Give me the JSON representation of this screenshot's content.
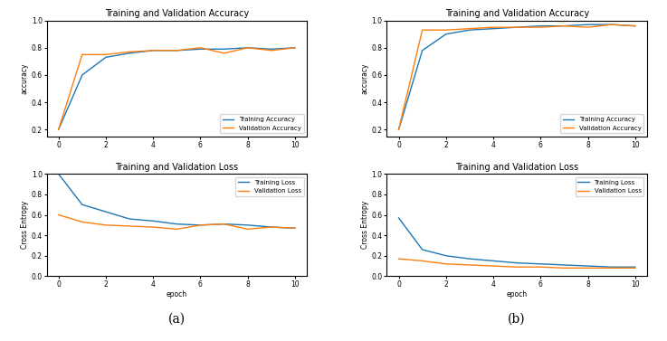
{
  "chart_data": [
    {
      "type": "line",
      "title": "Training and Validation Accuracy",
      "ylabel": "accuracy",
      "x": [
        0,
        1,
        2,
        3,
        4,
        5,
        6,
        7,
        8,
        9,
        10
      ],
      "series": [
        {
          "name": "Training Accuracy",
          "color": "#1f77b4",
          "values": [
            0.2,
            0.6,
            0.73,
            0.76,
            0.78,
            0.78,
            0.79,
            0.79,
            0.8,
            0.79,
            0.8
          ]
        },
        {
          "name": "Validation Accuracy",
          "color": "#ff7f0e",
          "values": [
            0.2,
            0.75,
            0.75,
            0.77,
            0.78,
            0.78,
            0.8,
            0.76,
            0.8,
            0.78,
            0.8
          ]
        }
      ],
      "xlim": [
        -0.5,
        10.5
      ],
      "xticks": [
        0,
        2,
        4,
        6,
        8,
        10
      ],
      "ylim": [
        0.15,
        1.0
      ],
      "yticks": [
        0.2,
        0.4,
        0.6,
        0.8,
        1.0
      ],
      "legend": "lower right"
    },
    {
      "type": "line",
      "title": "Training and Validation Loss",
      "ylabel": "Cross Entropy",
      "xlabel": "epoch",
      "x": [
        0,
        1,
        2,
        3,
        4,
        5,
        6,
        7,
        8,
        9,
        10
      ],
      "series": [
        {
          "name": "Training Loss",
          "color": "#1f77b4",
          "values": [
            1.0,
            0.7,
            0.63,
            0.56,
            0.54,
            0.51,
            0.5,
            0.51,
            0.5,
            0.48,
            0.47
          ]
        },
        {
          "name": "Validation Loss",
          "color": "#ff7f0e",
          "values": [
            0.6,
            0.53,
            0.5,
            0.49,
            0.48,
            0.46,
            0.5,
            0.51,
            0.46,
            0.48,
            0.47
          ]
        }
      ],
      "xlim": [
        -0.5,
        10.5
      ],
      "xticks": [
        0,
        2,
        4,
        6,
        8,
        10
      ],
      "ylim": [
        0.0,
        1.0
      ],
      "yticks": [
        0.0,
        0.2,
        0.4,
        0.6,
        0.8,
        1.0
      ],
      "legend": "upper right",
      "annotations": [
        "(a)"
      ]
    },
    {
      "type": "line",
      "title": "Training and Validation Accuracy",
      "ylabel": "accuracy",
      "x": [
        0,
        1,
        2,
        3,
        4,
        5,
        6,
        7,
        8,
        9,
        10
      ],
      "series": [
        {
          "name": "Training Accuracy",
          "color": "#1f77b4",
          "values": [
            0.2,
            0.78,
            0.9,
            0.93,
            0.94,
            0.95,
            0.96,
            0.96,
            0.97,
            0.97,
            0.96
          ]
        },
        {
          "name": "Validation Accuracy",
          "color": "#ff7f0e",
          "values": [
            0.2,
            0.93,
            0.93,
            0.94,
            0.95,
            0.95,
            0.95,
            0.96,
            0.95,
            0.97,
            0.96
          ]
        }
      ],
      "xlim": [
        -0.5,
        10.5
      ],
      "xticks": [
        0,
        2,
        4,
        6,
        8,
        10
      ],
      "ylim": [
        0.15,
        1.0
      ],
      "yticks": [
        0.2,
        0.4,
        0.6,
        0.8,
        1.0
      ],
      "legend": "lower right"
    },
    {
      "type": "line",
      "title": "Training and Validation Loss",
      "ylabel": "Cross Entropy",
      "xlabel": "epoch",
      "x": [
        0,
        1,
        2,
        3,
        4,
        5,
        6,
        7,
        8,
        9,
        10
      ],
      "series": [
        {
          "name": "Training Loss",
          "color": "#1f77b4",
          "values": [
            0.57,
            0.26,
            0.2,
            0.17,
            0.15,
            0.13,
            0.12,
            0.11,
            0.1,
            0.09,
            0.09
          ]
        },
        {
          "name": "Validation Loss",
          "color": "#ff7f0e",
          "values": [
            0.17,
            0.15,
            0.12,
            0.11,
            0.1,
            0.09,
            0.09,
            0.08,
            0.08,
            0.08,
            0.08
          ]
        }
      ],
      "xlim": [
        -0.5,
        10.5
      ],
      "xticks": [
        0,
        2,
        4,
        6,
        8,
        10
      ],
      "ylim": [
        0.0,
        1.0
      ],
      "yticks": [
        0.0,
        0.2,
        0.4,
        0.6,
        0.8,
        1.0
      ],
      "legend": "upper right",
      "annotations": [
        "(b)"
      ]
    }
  ]
}
